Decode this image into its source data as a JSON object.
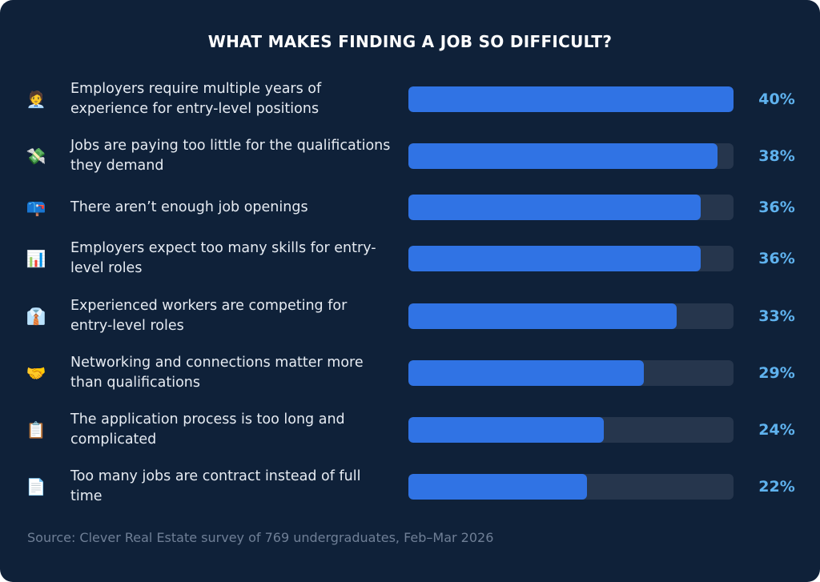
{
  "chart_data": {
    "type": "bar",
    "orientation": "horizontal",
    "title": "WHAT MAKES FINDING A JOB SO DIFFICULT?",
    "xlabel": "",
    "ylabel": "",
    "xlim": [
      0,
      40
    ],
    "grid": false,
    "value_suffix": "%",
    "categories": [
      "Employers require multiple years of experience for entry-level positions",
      "Jobs are paying too little for the qualifications they demand",
      "There aren’t enough job openings",
      "Employers expect too many skills for entry-level roles",
      "Experienced workers are competing for entry-level roles",
      "Networking and connections matter more than qualifications",
      "The application process is too long and complicated",
      "Too many jobs are contract instead of full time"
    ],
    "values": [
      40,
      38,
      36,
      36,
      33,
      29,
      24,
      22
    ],
    "data_labels": [
      "40%",
      "38%",
      "36%",
      "36%",
      "33%",
      "29%",
      "24%",
      "22%"
    ],
    "icons": [
      {
        "name": "office-worker-icon",
        "glyph": "🧑‍💼"
      },
      {
        "name": "money-with-wings-icon",
        "glyph": "💸"
      },
      {
        "name": "mailbox-icon",
        "glyph": "📪"
      },
      {
        "name": "bar-chart-icon",
        "glyph": "📊"
      },
      {
        "name": "necktie-shirt-icon",
        "glyph": "👔"
      },
      {
        "name": "handshake-icon",
        "glyph": "🤝"
      },
      {
        "name": "clipboard-icon",
        "glyph": "📋"
      },
      {
        "name": "document-icon",
        "glyph": "📄"
      }
    ],
    "colors": {
      "background": "#0f2139",
      "bar_fill": "#3073e4",
      "bar_track": "#26364d",
      "value_label": "#5fb2ee",
      "title": "#ffffff",
      "label": "#e6ebf2",
      "source": "#6f7f96"
    },
    "source": "Source: Clever Real Estate survey of 769 undergraduates, Feb–Mar 2026"
  }
}
